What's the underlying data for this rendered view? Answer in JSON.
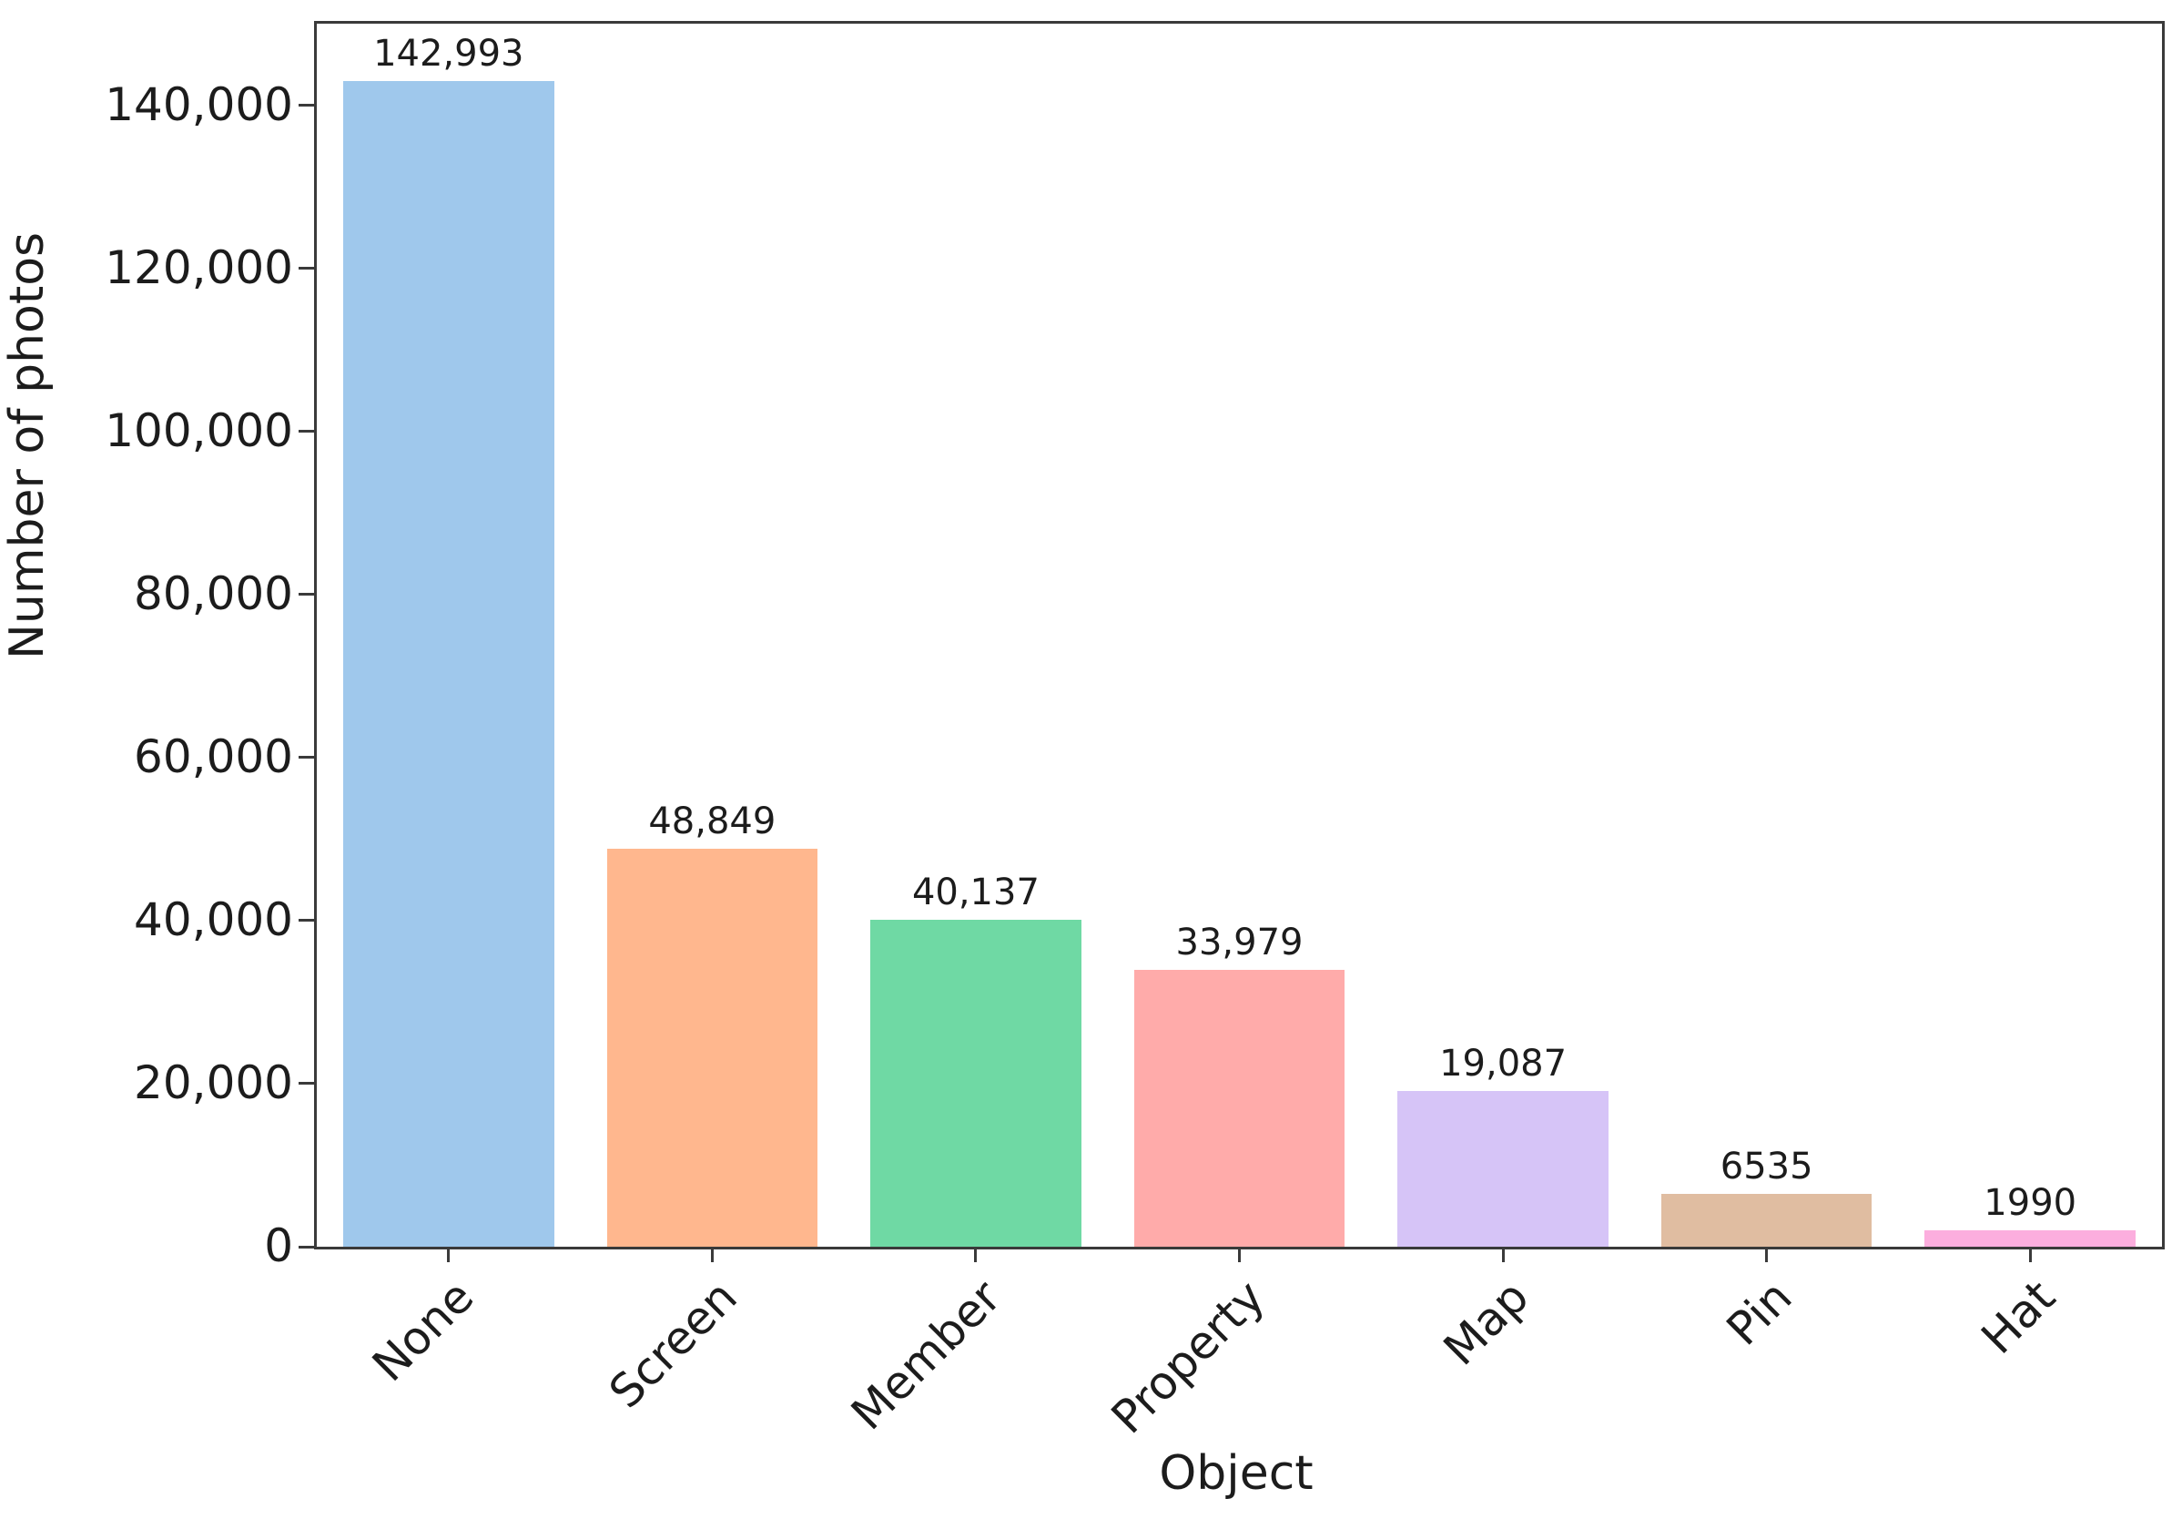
{
  "chart_data": {
    "type": "bar",
    "title": "",
    "xlabel": "Object",
    "ylabel": "Number of photos",
    "categories": [
      "None",
      "Screen",
      "Member",
      "Property",
      "Map",
      "Pin",
      "Hat"
    ],
    "values": [
      142993,
      48849,
      40137,
      33979,
      19087,
      6535,
      1990
    ],
    "bar_value_labels": [
      "142,993",
      "48,849",
      "40,137",
      "33,979",
      "19,087",
      "6535",
      "1990"
    ],
    "bar_colors": [
      "#9fc8ec",
      "#ffb78e",
      "#6fd9a4",
      "#ffabaa",
      "#d6c4f7",
      "#e0bda1",
      "#fcaede"
    ],
    "ylim": [
      0,
      150000
    ],
    "yticks": {
      "values": [
        0,
        20000,
        40000,
        60000,
        80000,
        100000,
        120000,
        140000
      ],
      "labels": [
        "0",
        "20,000",
        "40,000",
        "60,000",
        "80,000",
        "100,000",
        "120,000",
        "140,000"
      ]
    },
    "x_tick_rotation_deg": 45,
    "bar_width_fraction": 0.8,
    "grid": false,
    "legend": null,
    "frame_color": "#3a3a3a",
    "text_color": "#1c1c1c",
    "background_color": "#ffffff"
  }
}
